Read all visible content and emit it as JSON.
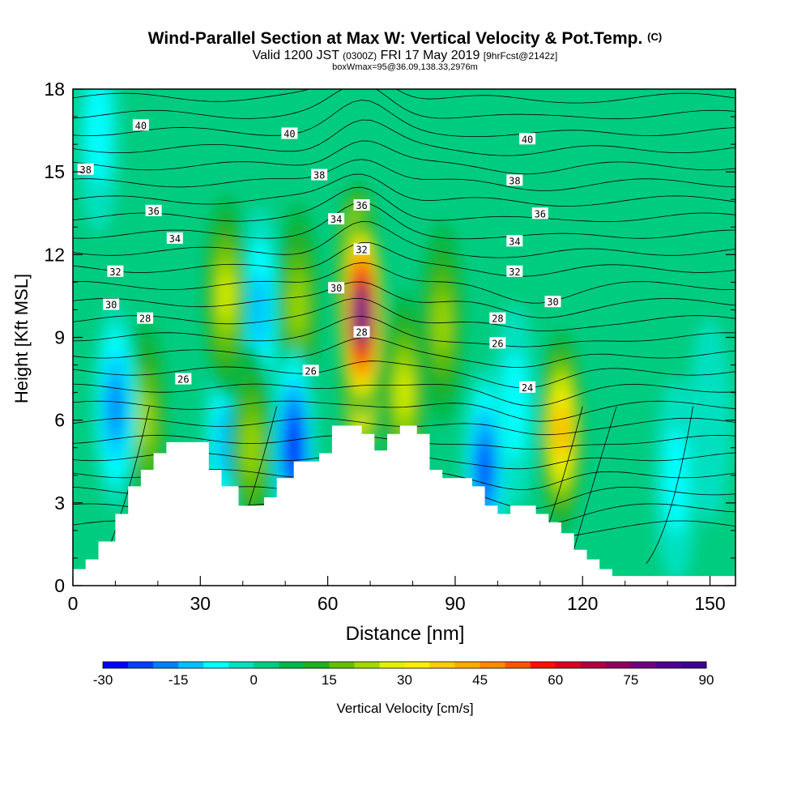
{
  "title": {
    "main": "Wind-Parallel Section at Max W: Vertical Velocity & Pot.Temp.",
    "copyright": "(C)",
    "valid_prefix": "Valid 1200 JST",
    "valid_zulu": "(0300Z)",
    "valid_date": "FRI 17 May 2019",
    "forecast": "[9hrFcst@2142z]",
    "box": "boxWmax=95@36.09,138.33,2976m"
  },
  "chart_data": {
    "type": "heatmap",
    "xlabel": "Distance [nm]",
    "ylabel": "Height [Kft MSL]",
    "xlim": [
      0,
      156
    ],
    "ylim": [
      0,
      18
    ],
    "xticks": [
      0,
      30,
      60,
      90,
      120,
      150
    ],
    "yticks": [
      0,
      3,
      6,
      9,
      12,
      15,
      18
    ],
    "colorbar": {
      "label": "Vertical Velocity [cm/s]",
      "min": -30,
      "max": 90,
      "step": 5,
      "tick_labels": [
        "-30",
        "-15",
        "0",
        "15",
        "30",
        "45",
        "60",
        "75",
        "90"
      ],
      "colors": [
        "#0000ff",
        "#0040ff",
        "#0080ff",
        "#00c0ff",
        "#00ffff",
        "#00e0c0",
        "#00cc80",
        "#00b84a",
        "#20b020",
        "#60c000",
        "#a0d800",
        "#e0f000",
        "#ffee00",
        "#ffcc00",
        "#ffaa00",
        "#ff8800",
        "#ff5500",
        "#ff1100",
        "#dd0020",
        "#b00040",
        "#900060",
        "#700080",
        "#500090",
        "#400090"
      ]
    },
    "terrain": [
      [
        0,
        0.6
      ],
      [
        3,
        0.6
      ],
      [
        3,
        0.95
      ],
      [
        6,
        0.95
      ],
      [
        6,
        1.6
      ],
      [
        10,
        1.6
      ],
      [
        10,
        2.6
      ],
      [
        13,
        2.6
      ],
      [
        13,
        3.6
      ],
      [
        16,
        3.6
      ],
      [
        16,
        4.2
      ],
      [
        19,
        4.2
      ],
      [
        19,
        4.8
      ],
      [
        22,
        4.8
      ],
      [
        22,
        5.2
      ],
      [
        32,
        5.2
      ],
      [
        32,
        4.2
      ],
      [
        35,
        4.2
      ],
      [
        35,
        3.6
      ],
      [
        39,
        3.6
      ],
      [
        39,
        2.9
      ],
      [
        45,
        2.9
      ],
      [
        45,
        3.2
      ],
      [
        48,
        3.2
      ],
      [
        48,
        3.9
      ],
      [
        52,
        3.9
      ],
      [
        52,
        4.5
      ],
      [
        58,
        4.5
      ],
      [
        58,
        4.8
      ],
      [
        61,
        4.8
      ],
      [
        61,
        5.8
      ],
      [
        68,
        5.8
      ],
      [
        68,
        5.5
      ],
      [
        71,
        5.5
      ],
      [
        71,
        4.9
      ],
      [
        74,
        4.9
      ],
      [
        74,
        5.5
      ],
      [
        77,
        5.5
      ],
      [
        77,
        5.8
      ],
      [
        81,
        5.8
      ],
      [
        81,
        5.5
      ],
      [
        84,
        5.5
      ],
      [
        84,
        4.2
      ],
      [
        87,
        4.2
      ],
      [
        87,
        3.9
      ],
      [
        94,
        3.9
      ],
      [
        94,
        3.6
      ],
      [
        97,
        3.6
      ],
      [
        97,
        2.9
      ],
      [
        100,
        2.9
      ],
      [
        100,
        2.6
      ],
      [
        103,
        2.6
      ],
      [
        103,
        2.9
      ],
      [
        109,
        2.9
      ],
      [
        109,
        2.6
      ],
      [
        112,
        2.6
      ],
      [
        112,
        2.3
      ],
      [
        115,
        2.3
      ],
      [
        115,
        1.9
      ],
      [
        118,
        1.9
      ],
      [
        118,
        1.3
      ],
      [
        121,
        1.3
      ],
      [
        121,
        0.95
      ],
      [
        124,
        0.95
      ],
      [
        124,
        0.6
      ],
      [
        127,
        0.6
      ],
      [
        127,
        0.35
      ],
      [
        137,
        0.35
      ],
      [
        137,
        0.35
      ],
      [
        156,
        0.35
      ]
    ],
    "velocity_cells": [
      {
        "x": 68,
        "y": 9.8,
        "w": 90
      },
      {
        "x": 68,
        "y": 8.0,
        "w": 55
      },
      {
        "x": 67,
        "y": 11.0,
        "w": 55
      },
      {
        "x": 115,
        "y": 5.6,
        "w": 40
      },
      {
        "x": 36,
        "y": 10.5,
        "w": 25
      },
      {
        "x": 53,
        "y": 10.2,
        "w": 20
      },
      {
        "x": 87,
        "y": 9.5,
        "w": 20
      },
      {
        "x": 78,
        "y": 7.0,
        "w": 25
      },
      {
        "x": 42,
        "y": 5.0,
        "w": 20
      },
      {
        "x": 17,
        "y": 6.0,
        "w": 18
      },
      {
        "x": 52,
        "y": 5.0,
        "w": -30
      },
      {
        "x": 10,
        "y": 6.5,
        "w": -20
      },
      {
        "x": 44,
        "y": 10.0,
        "w": -15
      },
      {
        "x": 36,
        "y": 5.2,
        "w": -15
      },
      {
        "x": 97,
        "y": 4.2,
        "w": -25
      },
      {
        "x": 104,
        "y": 6.5,
        "w": -10
      },
      {
        "x": 142,
        "y": 3.8,
        "w": -8
      },
      {
        "x": 150,
        "y": 6.0,
        "w": -6
      },
      {
        "x": 6,
        "y": 16.5,
        "w": -8
      }
    ],
    "theta_labels": [
      {
        "text": "40",
        "x": 16,
        "y": 16.7
      },
      {
        "text": "40",
        "x": 51,
        "y": 16.4
      },
      {
        "text": "40",
        "x": 107,
        "y": 16.2
      },
      {
        "text": "38",
        "x": 3,
        "y": 15.1
      },
      {
        "text": "38",
        "x": 58,
        "y": 14.9
      },
      {
        "text": "38",
        "x": 104,
        "y": 14.7
      },
      {
        "text": "36",
        "x": 19,
        "y": 13.6
      },
      {
        "text": "36",
        "x": 68,
        "y": 13.8
      },
      {
        "text": "36",
        "x": 110,
        "y": 13.5
      },
      {
        "text": "34",
        "x": 24,
        "y": 12.6
      },
      {
        "text": "34",
        "x": 62,
        "y": 13.3
      },
      {
        "text": "34",
        "x": 104,
        "y": 12.5
      },
      {
        "text": "32",
        "x": 10,
        "y": 11.4
      },
      {
        "text": "32",
        "x": 68,
        "y": 12.2
      },
      {
        "text": "32",
        "x": 104,
        "y": 11.4
      },
      {
        "text": "30",
        "x": 9,
        "y": 10.2
      },
      {
        "text": "30",
        "x": 62,
        "y": 10.8
      },
      {
        "text": "30",
        "x": 113,
        "y": 10.3
      },
      {
        "text": "28",
        "x": 17,
        "y": 9.7
      },
      {
        "text": "28",
        "x": 68,
        "y": 9.2
      },
      {
        "text": "28",
        "x": 100,
        "y": 9.7
      },
      {
        "text": "26",
        "x": 26,
        "y": 7.5
      },
      {
        "text": "26",
        "x": 56,
        "y": 7.8
      },
      {
        "text": "26",
        "x": 100,
        "y": 8.8
      },
      {
        "text": "24",
        "x": 107,
        "y": 7.2
      }
    ]
  }
}
